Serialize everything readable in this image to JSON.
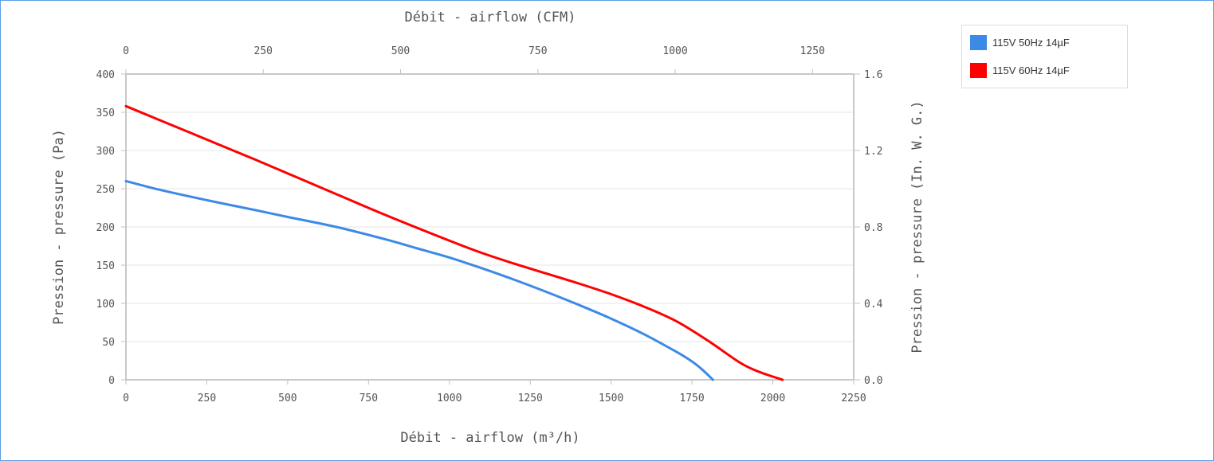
{
  "chart_data": {
    "type": "line",
    "title": "",
    "xlabel_bottom": "Débit - airflow (m³/h)",
    "xlabel_top": "Débit - airflow (CFM)",
    "ylabel_left": "Pression - pressure (Pa)",
    "ylabel_right": "Pression - pressure (In. W. G.)",
    "xlim": [
      0,
      2250
    ],
    "ylim": [
      0,
      400
    ],
    "xlim_top": [
      0,
      1325
    ],
    "ylim_right": [
      0.0,
      1.6
    ],
    "x_ticks": [
      "0",
      "250",
      "500",
      "750",
      "1000",
      "1250",
      "1500",
      "1750",
      "2000",
      "2250"
    ],
    "y_ticks": [
      "0",
      "50",
      "100",
      "150",
      "200",
      "250",
      "300",
      "350",
      "400"
    ],
    "x_top_ticks": [
      "0",
      "250",
      "500",
      "750",
      "1000",
      "1250"
    ],
    "y_right_ticks": [
      "0.0",
      "0.4",
      "0.8",
      "1.2",
      "1.6"
    ],
    "grid": "horizontal",
    "legend_position": "top-right",
    "series": [
      {
        "name": "115V 50Hz 14µF",
        "color": "#3d8ae6",
        "x": [
          0,
          100,
          250,
          400,
          500,
          650,
          800,
          900,
          1000,
          1100,
          1200,
          1300,
          1400,
          1500,
          1600,
          1700,
          1750,
          1780,
          1815
        ],
        "y": [
          260,
          249,
          235,
          222,
          213,
          200,
          184,
          172,
          160,
          146,
          131,
          115,
          98,
          80,
          60,
          37,
          24,
          14,
          0
        ]
      },
      {
        "name": "115V 60Hz 14µF",
        "color": "#ff0000",
        "x": [
          0,
          200,
          400,
          600,
          800,
          1000,
          1100,
          1200,
          1300,
          1400,
          1500,
          1600,
          1700,
          1800,
          1900,
          1960,
          2030
        ],
        "y": [
          358,
          323,
          288,
          252,
          216,
          182,
          166,
          152,
          139,
          126,
          112,
          96,
          77,
          51,
          22,
          10,
          0
        ]
      }
    ]
  }
}
